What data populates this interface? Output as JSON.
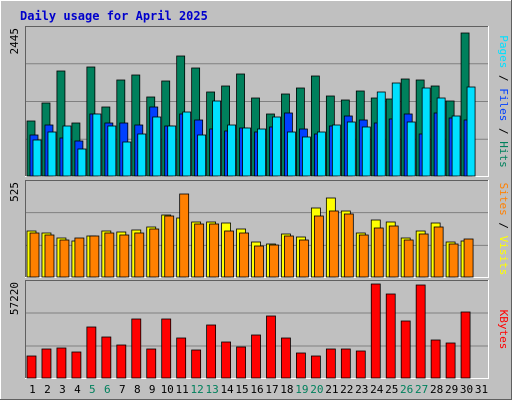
{
  "colors": {
    "background": "#C0C0C0",
    "panel": "#C0C0C0",
    "title": "#0000CC",
    "hits": "#00805C",
    "files": "#0040FF",
    "pages": "#00E0FF",
    "visits": "#FFFF00",
    "sites": "#FF8000",
    "kbytes": "#FF0000",
    "weekend_day": "#00805C",
    "weekday": "#000000"
  },
  "chart_data": {
    "type": "bar",
    "title": "Daily usage for April 2025",
    "days": [
      "1",
      "2",
      "3",
      "4",
      "5",
      "6",
      "7",
      "8",
      "9",
      "10",
      "11",
      "12",
      "13",
      "14",
      "15",
      "16",
      "17",
      "18",
      "19",
      "20",
      "21",
      "22",
      "23",
      "24",
      "25",
      "26",
      "27",
      "28",
      "29",
      "30",
      "31"
    ],
    "weekend_days": [
      "5",
      "6",
      "12",
      "13",
      "19",
      "20",
      "26",
      "27"
    ],
    "panels": [
      {
        "id": "hits_files_pages",
        "ymax_label": "2445",
        "ymax": 2445,
        "legend": [
          "Pages",
          "Files",
          "Hits"
        ],
        "series": [
          {
            "name": "Hits",
            "values": [
              920,
              1230,
              1760,
              890,
              1830,
              1150,
              1600,
              1690,
              1320,
              1590,
              2010,
              1810,
              1400,
              1500,
              1710,
              1310,
              1040,
              1380,
              1470,
              1670,
              1340,
              1280,
              1420,
              1300,
              1290,
              1630,
              1600,
              1500,
              1250,
              2400,
              0
            ]
          },
          {
            "name": "Files",
            "values": [
              690,
              850,
              630,
              580,
              1030,
              880,
              880,
              860,
              1150,
              840,
              1030,
              930,
              780,
              750,
              800,
              740,
              820,
              1060,
              780,
              710,
              830,
              1000,
              940,
              890,
              960,
              1030,
              700,
              1060,
              970,
              930,
              0
            ]
          },
          {
            "name": "Pages",
            "values": [
              610,
              740,
              840,
              450,
              1030,
              840,
              570,
              700,
              990,
              840,
              1080,
              690,
              1250,
              850,
              810,
              790,
              980,
              740,
              660,
              730,
              850,
              910,
              820,
              1400,
              1550,
              910,
              1470,
              1310,
              1010,
              1490,
              0
            ]
          }
        ]
      },
      {
        "id": "visits_sites",
        "ymax_label": "525",
        "ymax": 525,
        "legend": [
          "Sites",
          "Visits"
        ],
        "series": [
          {
            "name": "Visits",
            "values": [
              262,
              251,
              222,
              201,
              234,
              258,
              256,
              268,
              281,
              349,
              332,
              309,
              312,
              303,
              269,
              196,
              189,
              242,
              226,
              390,
              445,
              370,
              249,
              324,
              308,
              221,
              257,
              305,
              196,
              203,
              0
            ]
          },
          {
            "name": "Sites",
            "values": [
              250,
              235,
              211,
              219,
              231,
              246,
              239,
              250,
              271,
              346,
              470,
              300,
              297,
              259,
              250,
              175,
              180,
              229,
              207,
              344,
              375,
              355,
              238,
              276,
              290,
              208,
              243,
              282,
              186,
              212,
              0
            ]
          }
        ]
      },
      {
        "id": "kbytes",
        "ymax_label": "57220",
        "ymax": 57220,
        "legend": [
          "KBytes"
        ],
        "series": [
          {
            "name": "KBytes",
            "values": [
              13200,
              17800,
              18000,
              15800,
              31200,
              24800,
              20300,
              36000,
              17700,
              35800,
              24600,
              17300,
              32000,
              21700,
              18900,
              26100,
              37800,
              24200,
              15300,
              13400,
              17500,
              17500,
              16300,
              57220,
              50900,
              34700,
              56500,
              23300,
              21400,
              40100,
              0
            ]
          }
        ]
      }
    ]
  }
}
